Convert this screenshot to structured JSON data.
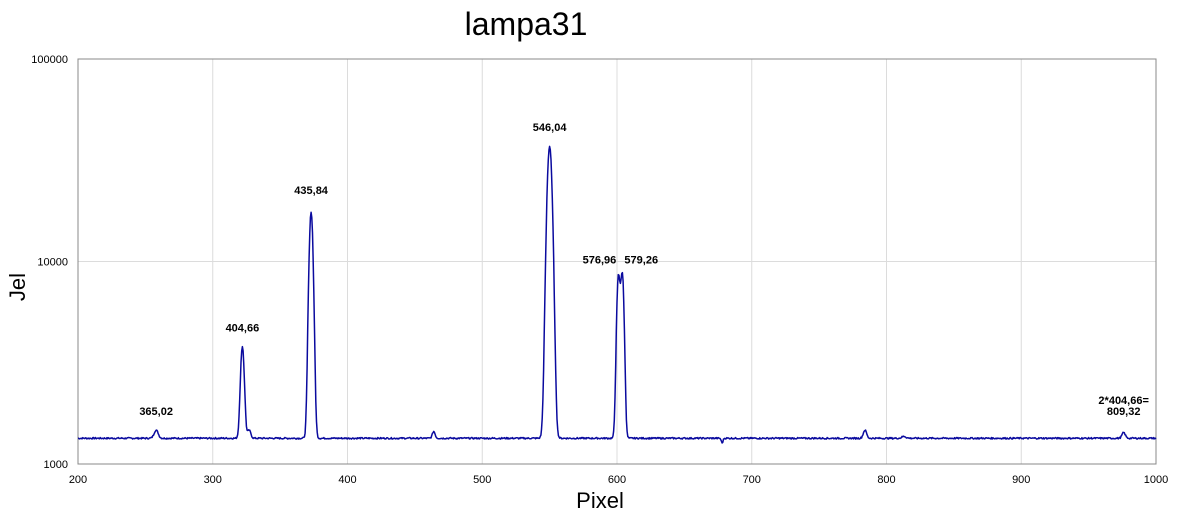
{
  "chart_data": {
    "type": "line",
    "title": "lampa31",
    "xlabel": "Pixel",
    "ylabel": "Jel",
    "xlim": [
      200,
      1000
    ],
    "ylim": [
      1000,
      100000
    ],
    "yscale": "log",
    "grid": true,
    "x_ticks": [
      200,
      300,
      400,
      500,
      600,
      700,
      800,
      900,
      1000
    ],
    "y_ticks": [
      1000,
      10000,
      100000
    ],
    "x_tick_labels": [
      "200",
      "300",
      "400",
      "500",
      "600",
      "700",
      "800",
      "900",
      "1000"
    ],
    "y_tick_labels": [
      "1000",
      "10000",
      "100000"
    ],
    "series_color": "#0a0a9e",
    "baseline": 1340,
    "peaks": [
      {
        "x": 258,
        "y": 1470,
        "w": 1.5
      },
      {
        "x": 322,
        "y": 3800,
        "w": 1.3
      },
      {
        "x": 327,
        "y": 1470,
        "w": 1.2
      },
      {
        "x": 373,
        "y": 17500,
        "w": 1.4
      },
      {
        "x": 464,
        "y": 1450,
        "w": 1.0
      },
      {
        "x": 550,
        "y": 37000,
        "w": 1.8
      },
      {
        "x": 601,
        "y": 8300,
        "w": 1.2
      },
      {
        "x": 604,
        "y": 8500,
        "w": 1.2
      },
      {
        "x": 784,
        "y": 1470,
        "w": 1.2
      },
      {
        "x": 813,
        "y": 1370,
        "w": 1.5
      },
      {
        "x": 976,
        "y": 1430,
        "w": 1.2
      }
    ],
    "dips": [
      {
        "x": 678,
        "y": 1270
      }
    ],
    "annotations": [
      {
        "lines": [
          "365,02"
        ],
        "x": 258,
        "y": 1750
      },
      {
        "lines": [
          "404,66"
        ],
        "x": 322,
        "y": 4500
      },
      {
        "lines": [
          "435,84"
        ],
        "x": 373,
        "y": 21500
      },
      {
        "lines": [
          "546,04"
        ],
        "x": 550,
        "y": 44000
      },
      {
        "lines": [
          "576,96"
        ],
        "x": 587,
        "y": 9800
      },
      {
        "lines": [
          "579,26"
        ],
        "x": 618,
        "y": 9800
      },
      {
        "lines": [
          "2*404,66=",
          "809,32"
        ],
        "x": 976,
        "y": 1750
      }
    ]
  }
}
